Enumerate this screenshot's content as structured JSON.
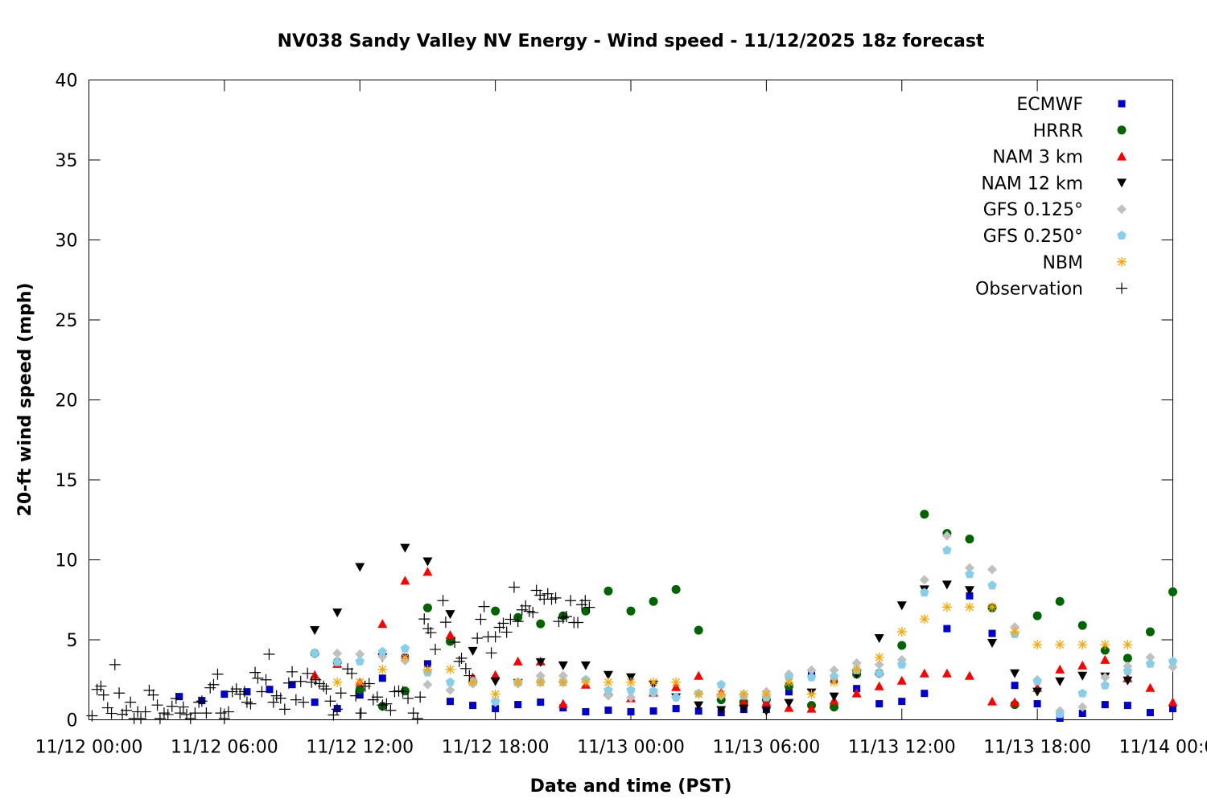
{
  "chart_data": {
    "type": "scatter",
    "title": "NV038 Sandy Valley NV Energy - Wind speed - 11/12/2025 18z forecast",
    "xlabel": "Date and time (PST)",
    "ylabel": "20-ft wind speed (mph)",
    "x_units": "hours since 11/12 00:00 PST",
    "xlim": [
      0,
      48
    ],
    "ylim": [
      0,
      40
    ],
    "grid": false,
    "legend_position": "top-right",
    "x_ticks": [
      {
        "value": 0,
        "label": "11/12 00:00"
      },
      {
        "value": 6,
        "label": "11/12 06:00"
      },
      {
        "value": 12,
        "label": "11/12 12:00"
      },
      {
        "value": 18,
        "label": "11/12 18:00"
      },
      {
        "value": 24,
        "label": "11/13 00:00"
      },
      {
        "value": 30,
        "label": "11/13 06:00"
      },
      {
        "value": 36,
        "label": "11/13 12:00"
      },
      {
        "value": 42,
        "label": "11/13 18:00"
      },
      {
        "value": 48,
        "label": "11/14 00:00"
      }
    ],
    "y_ticks": [
      {
        "value": 0,
        "label": "0"
      },
      {
        "value": 5,
        "label": "5"
      },
      {
        "value": 10,
        "label": "10"
      },
      {
        "value": 15,
        "label": "15"
      },
      {
        "value": 20,
        "label": "20"
      },
      {
        "value": 25,
        "label": "25"
      },
      {
        "value": 30,
        "label": "30"
      },
      {
        "value": 35,
        "label": "35"
      },
      {
        "value": 40,
        "label": "40"
      }
    ],
    "series": [
      {
        "name": "ECMWF",
        "marker": "square",
        "color": "#0000cc",
        "x_start": 4,
        "y": [
          1.45,
          1.2,
          1.6,
          1.75,
          1.9,
          2.2,
          1.1,
          0.7,
          1.55,
          2.6,
          3.9,
          3.5,
          1.15,
          0.9,
          0.7,
          0.95,
          1.1,
          0.75,
          0.5,
          0.6,
          0.5,
          0.55,
          0.7,
          0.55,
          0.45,
          0.65,
          0.65,
          1.75,
          2.95,
          2.5,
          1.95,
          1.0,
          1.15,
          1.65,
          5.7,
          7.75,
          5.4,
          2.15,
          1.0,
          0.1,
          0.4,
          0.95,
          0.9,
          0.45,
          0.7
        ]
      },
      {
        "name": "HRRR",
        "marker": "circle",
        "color": "#006400",
        "x_start": 10,
        "y": [
          4.15,
          3.6,
          1.9,
          0.85,
          1.8,
          7.0,
          4.9,
          2.35,
          6.8,
          6.4,
          6.0,
          6.5,
          6.8,
          8.05,
          6.8,
          7.4,
          8.15,
          5.6,
          1.25,
          1.1,
          1.25,
          2.1,
          0.9,
          0.8,
          2.85,
          2.9,
          4.65,
          12.85,
          11.65,
          11.3,
          7.0,
          0.95,
          6.5,
          7.4,
          5.9,
          4.35,
          3.85,
          5.5,
          8.0
        ]
      },
      {
        "name": "NAM 3 km",
        "marker": "triangle-up",
        "color": "#ff0000",
        "x_start": 10,
        "y": [
          2.8,
          3.5,
          2.35,
          6.0,
          8.7,
          9.25,
          5.3,
          2.65,
          2.8,
          3.65,
          3.65,
          1.0,
          2.2,
          1.75,
          1.35,
          1.7,
          2.05,
          2.75,
          1.7,
          1.1,
          1.1,
          0.75,
          0.7,
          1.2,
          1.65,
          2.1,
          2.45,
          2.9,
          2.9,
          2.75,
          1.15,
          1.1,
          2.0,
          3.15,
          3.4,
          3.75,
          2.6,
          2.0,
          1.1
        ]
      },
      {
        "name": "NAM 12 km",
        "marker": "triangle-down",
        "color": "#000000",
        "x_start": 10,
        "y": [
          5.6,
          6.7,
          9.55,
          3.9,
          10.75,
          9.9,
          6.6,
          4.3,
          2.4,
          2.3,
          3.6,
          3.4,
          3.4,
          2.8,
          2.65,
          2.2,
          1.4,
          0.9,
          0.6,
          0.7,
          0.55,
          1.05,
          1.7,
          1.45,
          2.85,
          5.1,
          7.15,
          8.15,
          8.45,
          8.1,
          4.8,
          2.9,
          1.75,
          2.4,
          2.75,
          2.7,
          2.45
        ]
      },
      {
        "name": "GFS 0.125°",
        "marker": "diamond",
        "color": "#c0c0c0",
        "x_start": 10,
        "y": [
          4.2,
          4.15,
          4.1,
          3.95,
          3.7,
          2.2,
          1.85,
          2.25,
          1.1,
          2.25,
          2.75,
          2.75,
          2.5,
          1.5,
          1.4,
          1.65,
          1.4,
          1.65,
          1.5,
          1.6,
          1.75,
          2.85,
          3.1,
          3.1,
          3.55,
          3.45,
          3.75,
          8.75,
          11.5,
          9.5,
          9.4,
          5.8,
          2.5,
          0.55,
          0.8,
          2.65,
          3.35,
          3.9,
          3.3
        ]
      },
      {
        "name": "GFS 0.250°",
        "marker": "pentagon",
        "color": "#87ceeb",
        "x_start": 10,
        "y": [
          4.15,
          3.6,
          3.65,
          4.25,
          4.45,
          2.95,
          2.35,
          2.4,
          1.15,
          2.35,
          2.35,
          2.35,
          2.5,
          1.85,
          1.85,
          1.8,
          1.4,
          1.65,
          2.2,
          1.5,
          1.4,
          2.65,
          2.65,
          2.7,
          3.1,
          2.9,
          3.45,
          7.95,
          10.6,
          9.1,
          8.4,
          5.35,
          2.4,
          0.35,
          1.65,
          2.15,
          3.05,
          3.5,
          3.65
        ]
      },
      {
        "name": "NBM",
        "marker": "asterisk",
        "color": "#ffa500",
        "x_start": 11,
        "y": [
          2.35,
          2.35,
          3.15,
          3.9,
          3.15,
          3.15,
          2.35,
          1.6,
          2.35,
          2.35,
          2.35,
          2.35,
          2.35,
          2.35,
          2.35,
          2.35,
          1.6,
          1.6,
          1.6,
          1.6,
          2.35,
          1.6,
          2.35,
          3.15,
          3.9,
          5.5,
          6.3,
          7.05,
          7.05,
          7.05,
          5.5,
          4.7,
          4.7,
          4.7,
          4.7,
          4.7
        ]
      },
      {
        "name": "Observation",
        "marker": "plus",
        "color": "#000000",
        "points": [
          [
            0.14,
            0.25
          ],
          [
            0.36,
            1.9
          ],
          [
            0.53,
            2.1
          ],
          [
            0.65,
            1.55
          ],
          [
            0.83,
            0.75
          ],
          [
            1.0,
            0.4
          ],
          [
            1.15,
            3.45
          ],
          [
            1.34,
            1.67
          ],
          [
            1.48,
            0.34
          ],
          [
            1.66,
            0.59
          ],
          [
            1.84,
            1.1
          ],
          [
            2.0,
            0.08
          ],
          [
            2.16,
            0.5
          ],
          [
            2.3,
            0.08
          ],
          [
            2.5,
            0.5
          ],
          [
            2.67,
            1.84
          ],
          [
            2.85,
            1.55
          ],
          [
            3.03,
            0.92
          ],
          [
            3.15,
            0.08
          ],
          [
            3.33,
            0.42
          ],
          [
            3.5,
            0.33
          ],
          [
            3.68,
            0.84
          ],
          [
            3.86,
            1.33
          ],
          [
            4.04,
            0.42
          ],
          [
            4.18,
            0.8
          ],
          [
            4.33,
            0.33
          ],
          [
            4.5,
            0.08
          ],
          [
            4.7,
            0.42
          ],
          [
            4.87,
            1.1
          ],
          [
            5.0,
            1.17
          ],
          [
            5.2,
            0.42
          ],
          [
            5.37,
            2.0
          ],
          [
            5.52,
            2.2
          ],
          [
            5.7,
            2.85
          ],
          [
            5.84,
            0.42
          ],
          [
            6.0,
            0.08
          ],
          [
            6.18,
            0.5
          ],
          [
            6.35,
            1.76
          ],
          [
            6.53,
            1.93
          ],
          [
            6.69,
            1.6
          ],
          [
            6.89,
            1.76
          ],
          [
            7.0,
            1.1
          ],
          [
            7.16,
            1.0
          ],
          [
            7.36,
            2.96
          ],
          [
            7.48,
            2.6
          ],
          [
            7.66,
            1.76
          ],
          [
            7.84,
            2.5
          ],
          [
            7.98,
            4.1
          ],
          [
            8.17,
            1.1
          ],
          [
            8.31,
            1.5
          ],
          [
            8.49,
            1.35
          ],
          [
            8.67,
            0.66
          ],
          [
            8.85,
            2.3
          ],
          [
            9.0,
            3.0
          ],
          [
            9.17,
            1.25
          ],
          [
            9.38,
            2.4
          ],
          [
            9.5,
            1.1
          ],
          [
            9.68,
            2.9
          ],
          [
            9.86,
            2.35
          ],
          [
            10.04,
            2.5
          ],
          [
            10.21,
            2.26
          ],
          [
            10.39,
            2.1
          ],
          [
            10.51,
            1.93
          ],
          [
            10.69,
            1.17
          ],
          [
            10.83,
            0.3
          ],
          [
            10.99,
            0.66
          ],
          [
            11.16,
            1.67
          ],
          [
            11.46,
            3.18
          ],
          [
            11.64,
            2.9
          ],
          [
            11.82,
            1.5
          ],
          [
            12.05,
            0.42
          ],
          [
            12.23,
            2.1
          ],
          [
            12.41,
            2.26
          ],
          [
            12.59,
            1.25
          ],
          [
            12.77,
            1.42
          ],
          [
            13.0,
            0.92
          ],
          [
            13.18,
            1.0
          ],
          [
            13.36,
            0.59
          ],
          [
            13.54,
            1.76
          ],
          [
            13.72,
            1.8
          ],
          [
            13.9,
            1.76
          ],
          [
            14.13,
            1.34
          ],
          [
            14.37,
            0.42
          ],
          [
            14.55,
            0.08
          ],
          [
            14.67,
            1.42
          ],
          [
            14.85,
            6.3
          ],
          [
            15.02,
            5.7
          ],
          [
            15.14,
            5.45
          ],
          [
            15.34,
            4.4
          ],
          [
            15.68,
            7.45
          ],
          [
            15.8,
            6.1
          ],
          [
            16.2,
            4.85
          ],
          [
            16.4,
            3.65
          ],
          [
            16.5,
            3.85
          ],
          [
            16.69,
            3.2
          ],
          [
            16.85,
            2.76
          ],
          [
            17.2,
            5.1
          ],
          [
            17.35,
            6.28
          ],
          [
            17.5,
            7.08
          ],
          [
            17.68,
            5.19
          ],
          [
            17.82,
            4.18
          ],
          [
            18.0,
            5.19
          ],
          [
            18.18,
            5.78
          ],
          [
            18.35,
            6.03
          ],
          [
            18.5,
            5.48
          ],
          [
            18.67,
            6.28
          ],
          [
            18.83,
            8.29
          ],
          [
            19.0,
            6.15
          ],
          [
            19.18,
            6.87
          ],
          [
            19.34,
            7.12
          ],
          [
            19.5,
            6.78
          ],
          [
            19.66,
            6.7
          ],
          [
            19.82,
            8.09
          ],
          [
            19.98,
            7.79
          ],
          [
            20.16,
            7.54
          ],
          [
            20.32,
            7.88
          ],
          [
            20.49,
            7.54
          ],
          [
            20.67,
            7.62
          ],
          [
            20.81,
            6.15
          ],
          [
            21.0,
            6.37
          ],
          [
            21.15,
            6.45
          ],
          [
            21.33,
            7.45
          ],
          [
            21.48,
            6.08
          ],
          [
            21.65,
            6.08
          ],
          [
            21.83,
            7.2
          ],
          [
            21.98,
            7.45
          ],
          [
            22.16,
            7.03
          ]
        ]
      }
    ]
  }
}
